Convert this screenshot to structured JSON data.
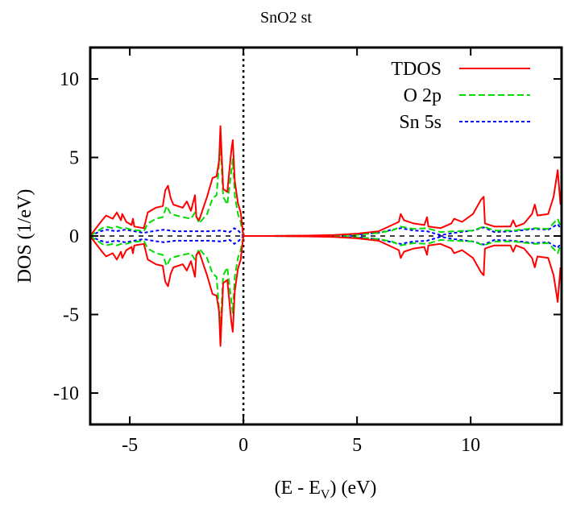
{
  "chart_data": {
    "type": "line",
    "title": "SnO2 st",
    "xlabel": "(E - E",
    "xlabel_sub": "V",
    "xlabel_tail": ") (eV)",
    "ylabel": "DOS (1/eV)",
    "xlim": [
      -6.74,
      14.0
    ],
    "ylim": [
      -12,
      12
    ],
    "xticks": [
      -5,
      0,
      5,
      10
    ],
    "yticks": [
      -10,
      -5,
      0,
      5,
      10
    ],
    "xtick_labels": [
      "-5",
      "0",
      "5",
      "10"
    ],
    "ytick_labels": [
      "-10",
      "-5",
      "0",
      "5",
      "10"
    ],
    "grid": false,
    "legend_position": "top-right",
    "mirrored_spin_down": true,
    "vertical_marker_x": 0,
    "zero_line": true,
    "series": [
      {
        "name": "TDOS",
        "color": "#ff0000",
        "dash": "solid",
        "x": [
          -6.75,
          -6.22,
          -6.04,
          -5.75,
          -5.57,
          -5.39,
          -5.33,
          -5.15,
          -4.92,
          -4.86,
          -4.8,
          -4.38,
          -4.21,
          -3.85,
          -3.55,
          -3.44,
          -3.32,
          -3.2,
          -3.08,
          -2.67,
          -2.49,
          -2.31,
          -2.13,
          -2.07,
          -1.95,
          -1.6,
          -1.36,
          -1.18,
          -1.07,
          -1.01,
          -0.89,
          -0.71,
          -0.53,
          -0.47,
          -0.38,
          -0.24,
          -0.12,
          0,
          1,
          2,
          3,
          4,
          5,
          5.95,
          6.54,
          6.84,
          6.92,
          7.07,
          7.49,
          7.96,
          8.08,
          8.14,
          8.67,
          9.15,
          9.27,
          9.62,
          10.1,
          10.45,
          10.57,
          10.63,
          11.04,
          11.75,
          11.87,
          11.99,
          12.35,
          12.7,
          12.82,
          12.94,
          13.41,
          13.65,
          13.83,
          13.95
        ],
        "y": [
          0,
          1.0,
          1.3,
          1.1,
          1.5,
          1.0,
          1.4,
          0.9,
          0.7,
          1.1,
          0.6,
          0.5,
          1.5,
          1.8,
          1.9,
          2.9,
          3.2,
          2.4,
          2.0,
          1.8,
          2.2,
          1.6,
          2.6,
          1.2,
          1.0,
          2.5,
          3.7,
          3.8,
          4.8,
          7.0,
          3.0,
          2.8,
          5.5,
          6.1,
          3.5,
          2.1,
          1.5,
          0,
          0,
          0.01,
          0.03,
          0.06,
          0.15,
          0.3,
          0.7,
          0.9,
          1.4,
          1.0,
          0.8,
          0.7,
          1.2,
          0.6,
          0.5,
          0.8,
          1.1,
          0.9,
          1.4,
          2.3,
          2.5,
          0.8,
          0.6,
          0.6,
          1.0,
          0.6,
          0.8,
          1.4,
          2.0,
          1.3,
          1.4,
          2.5,
          4.2,
          2.0
        ]
      },
      {
        "name": "O 2p",
        "color": "#00dd00",
        "dash": "dashed",
        "x": [
          -6.75,
          -6.22,
          -6.04,
          -5.75,
          -5.57,
          -5.39,
          -5.15,
          -4.92,
          -4.38,
          -4.21,
          -3.85,
          -3.55,
          -3.38,
          -3.2,
          -2.67,
          -2.31,
          -2.13,
          -1.95,
          -1.6,
          -1.36,
          -1.18,
          -1.01,
          -0.89,
          -0.71,
          -0.47,
          -0.38,
          -0.24,
          -0.12,
          0,
          1,
          2,
          3,
          4,
          5,
          5.95,
          6.54,
          6.92,
          7.49,
          8.08,
          8.67,
          9.27,
          10.1,
          10.57,
          11.04,
          11.87,
          12.82,
          13.41,
          13.83,
          13.95
        ],
        "y": [
          0,
          0.5,
          0.6,
          0.5,
          0.6,
          0.5,
          0.5,
          0.4,
          0.3,
          0.8,
          1.1,
          1.2,
          1.9,
          1.4,
          1.2,
          1.1,
          1.5,
          0.8,
          1.4,
          2.4,
          2.6,
          5.8,
          2.5,
          2.0,
          4.9,
          2.6,
          1.4,
          0.9,
          0,
          0,
          0.01,
          0.02,
          0.04,
          0.08,
          0.2,
          0.35,
          0.6,
          0.45,
          0.5,
          0.25,
          0.3,
          0.35,
          0.6,
          0.35,
          0.35,
          0.5,
          0.45,
          1.1,
          0.6
        ]
      },
      {
        "name": "Sn 5s",
        "color": "#0000ff",
        "dash": "dotted",
        "x": [
          -6.75,
          -6.3,
          -6.0,
          -5.6,
          -5.2,
          -4.8,
          -4.4,
          -4.0,
          -3.5,
          -3.0,
          -2.5,
          -2.0,
          -1.5,
          -1.0,
          -0.6,
          -0.4,
          -0.2,
          0,
          1,
          2,
          3,
          4,
          5,
          5.95,
          6.54,
          6.92,
          7.49,
          8.08,
          8.67,
          9.27,
          10.1,
          10.57,
          11.04,
          11.87,
          12.82,
          13.41,
          13.83,
          13.95
        ],
        "y": [
          0,
          0.3,
          0.4,
          0.3,
          0.4,
          0.3,
          0.2,
          0.3,
          0.4,
          0.3,
          0.3,
          0.3,
          0.3,
          0.35,
          0.25,
          0.5,
          0.3,
          0,
          0,
          0.01,
          0.02,
          0.04,
          0.08,
          0.2,
          0.4,
          0.5,
          0.35,
          0.3,
          0.05,
          0.2,
          0.35,
          0.55,
          0.25,
          0.3,
          0.45,
          0.4,
          0.75,
          0.5
        ]
      }
    ]
  }
}
